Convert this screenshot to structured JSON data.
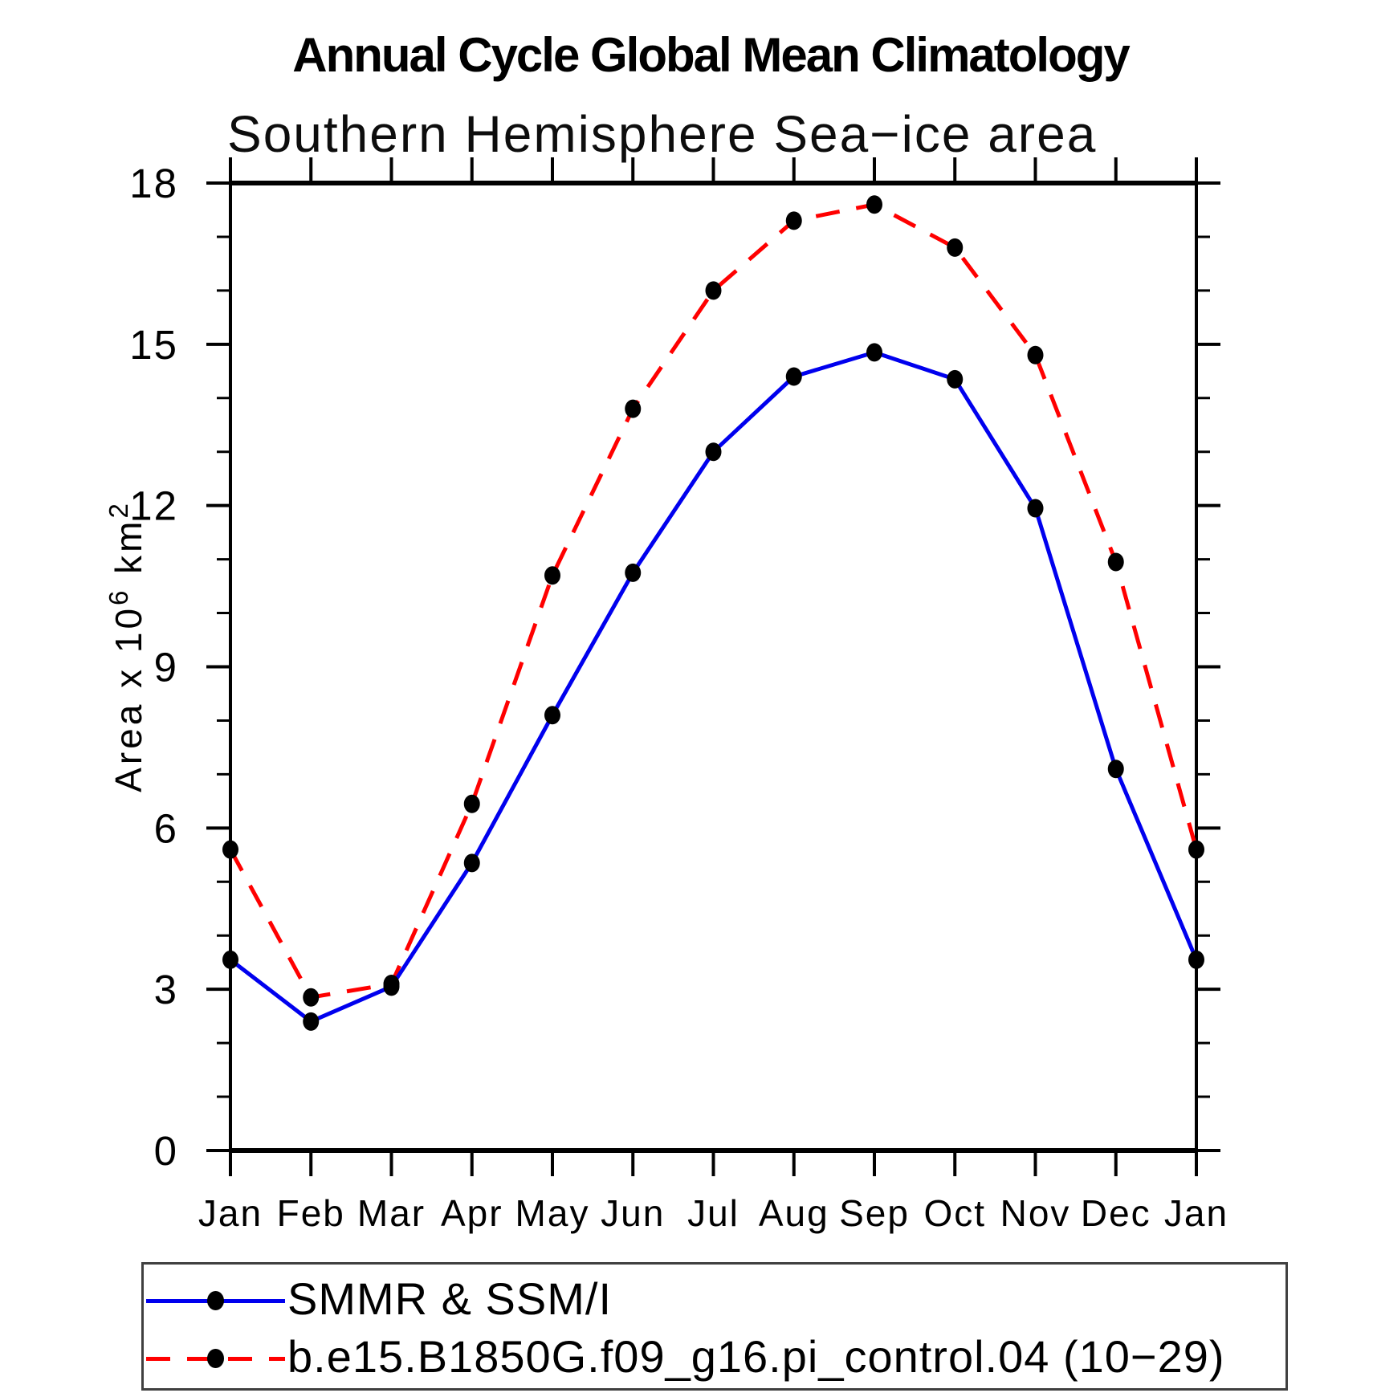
{
  "title": "Annual Cycle Global Mean Climatology",
  "subtitle": "Southern Hemisphere Sea−ice area",
  "chart_data": {
    "type": "line",
    "categories": [
      "Jan",
      "Feb",
      "Mar",
      "Apr",
      "May",
      "Jun",
      "Jul",
      "Aug",
      "Sep",
      "Oct",
      "Nov",
      "Dec",
      "Jan"
    ],
    "series": [
      {
        "name": "SMMR & SSM/I",
        "color": "#0000ee",
        "line_style": "solid",
        "marker": "filled-circle",
        "marker_color": "#000000",
        "values": [
          3.55,
          2.4,
          3.05,
          5.35,
          8.1,
          10.75,
          13.0,
          14.4,
          14.85,
          14.35,
          11.95,
          7.1,
          3.55
        ]
      },
      {
        "name": "b.e15.B1850G.f09_g16.pi_control.04 (10−29)",
        "color": "#ff0000",
        "line_style": "dashed",
        "marker": "filled-circle",
        "marker_color": "#000000",
        "values": [
          5.6,
          2.85,
          3.1,
          6.45,
          10.7,
          13.8,
          16.0,
          17.3,
          17.6,
          16.8,
          14.8,
          10.95,
          5.6
        ]
      }
    ],
    "xlabel": "",
    "ylabel": "Area x 10⁶ km²",
    "ylabel_parts": [
      {
        "t": "Area x 10"
      },
      {
        "t": "6",
        "sup": true
      },
      {
        "t": " km"
      },
      {
        "t": "2",
        "sup": true
      }
    ],
    "ylim": [
      0,
      18
    ],
    "ytick_major": [
      0,
      3,
      6,
      9,
      12,
      15,
      18
    ],
    "ytick_minor_interval": 1,
    "grid": false,
    "legend_position": "bottom-box"
  }
}
